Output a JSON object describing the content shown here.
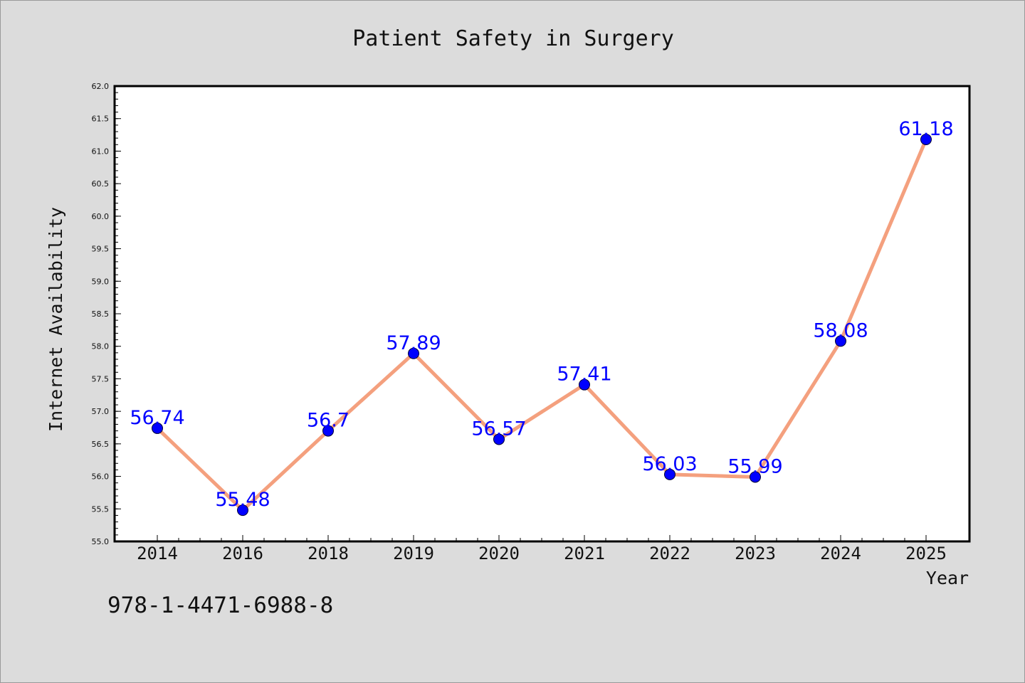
{
  "chart_data": {
    "type": "line",
    "title": "Patient Safety in Surgery",
    "xlabel": "Year",
    "ylabel": "Internet Availability",
    "categories": [
      "2014",
      "2016",
      "2018",
      "2019",
      "2020",
      "2021",
      "2022",
      "2023",
      "2024",
      "2025"
    ],
    "series": [
      {
        "values": [
          56.74,
          55.48,
          56.7,
          57.89,
          56.57,
          57.41,
          56.03,
          55.99,
          58.08,
          61.18
        ],
        "data_labels": [
          "56.74",
          "55.48",
          "56.7",
          "57.89",
          "56.57",
          "57.41",
          "56.03",
          "55.99",
          "58.08",
          "61.18"
        ]
      }
    ],
    "ylim": [
      55.0,
      62.0
    ],
    "yticks": [
      "55.0",
      "55.5",
      "56.0",
      "56.5",
      "57.0",
      "57.5",
      "58.0",
      "58.5",
      "59.0",
      "59.5",
      "60.0",
      "60.5",
      "61.0",
      "61.5",
      "62.0"
    ],
    "grid": false,
    "legend": "none"
  },
  "footer": {
    "code": "978-1-4471-6988-8"
  },
  "colors": {
    "figure_background": "#dcdcdc",
    "plot_background": "#ffffff",
    "line": "#f4a07e",
    "marker": "#0000ff",
    "data_label": "#0000ff",
    "text": "#111111"
  }
}
